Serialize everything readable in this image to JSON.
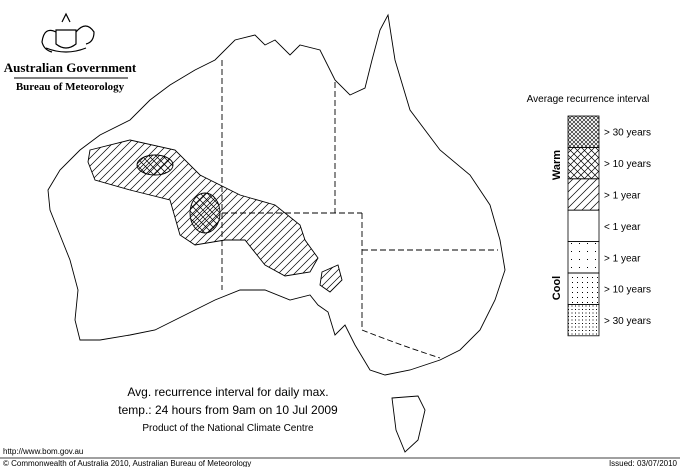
{
  "header": {
    "title": "Australian Government",
    "subtitle": "Bureau of Meteorology"
  },
  "legend": {
    "title": "Average recurrence interval",
    "warm_label": "Warm",
    "cool_label": "Cool",
    "items": [
      {
        "label": "> 30 years"
      },
      {
        "label": "> 10 years"
      },
      {
        "label": "> 1 year"
      },
      {
        "label": "< 1 year"
      },
      {
        "label": "> 1 year"
      },
      {
        "label": "> 10 years"
      },
      {
        "label": "> 30 years"
      }
    ]
  },
  "caption": {
    "lines": [
      "Avg. recurrence interval for daily max.",
      "temp.: 24 hours from 9am on 10 Jul 2009"
    ],
    "product": "Product of the National Climate Centre"
  },
  "footer": {
    "url": "http://www.bom.gov.au",
    "copyright": "© Commonwealth of Australia 2010, Australian Bureau of Meteorology",
    "issued": "Issued: 03/07/2010"
  }
}
